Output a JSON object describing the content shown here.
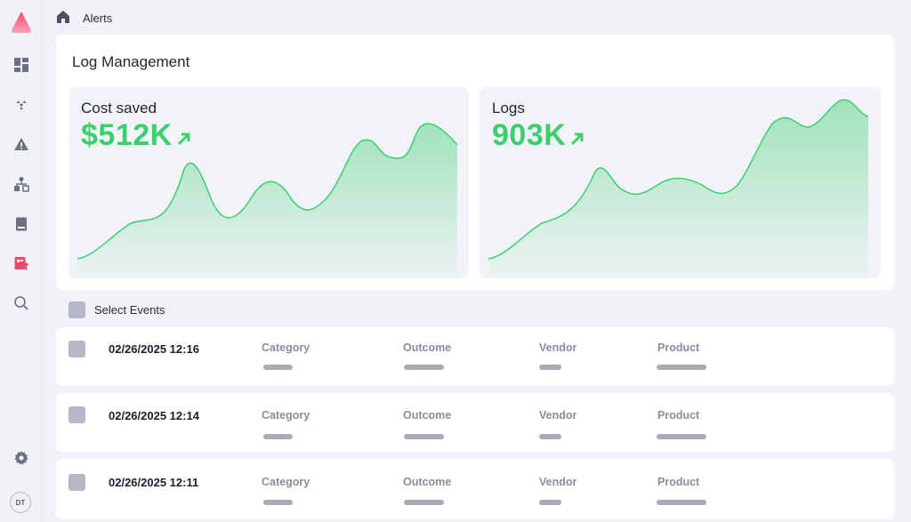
{
  "breadcrumb": {
    "current": "Alerts"
  },
  "panel": {
    "title": "Log Management"
  },
  "cards": [
    {
      "label": "Cost saved",
      "value": "$512K",
      "trend_icon": "arrow-up-right-icon"
    },
    {
      "label": "Logs",
      "value": "903K",
      "trend_icon": "arrow-up-right-icon"
    }
  ],
  "select_events": {
    "label": "Select Events"
  },
  "columns": [
    "Category",
    "Outcome",
    "Vendor",
    "Product"
  ],
  "events": [
    {
      "timestamp": "02/26/2025 12:16"
    },
    {
      "timestamp": "02/26/2025 12:14"
    },
    {
      "timestamp": "02/26/2025 12:11"
    }
  ],
  "user": {
    "initials": "DT"
  },
  "sidebar_icons": [
    "logo-icon",
    "dashboard-icon",
    "radiation-icon",
    "warning-icon",
    "hierarchy-icon",
    "book-icon",
    "log-upload-icon",
    "search-icon",
    "gear-icon"
  ],
  "colors": {
    "accent_green": "#3ccf6e",
    "logo_pink": "#f0476e",
    "active_nav": "#ec4a6f"
  }
}
